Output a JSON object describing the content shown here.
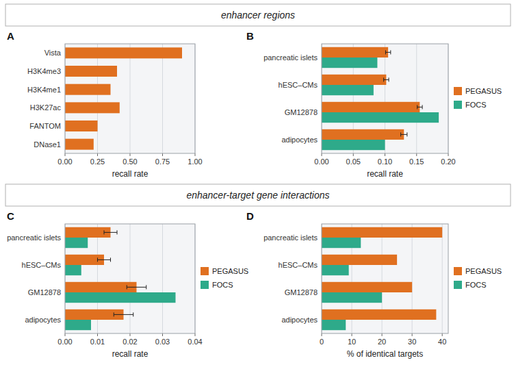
{
  "chart_data": [
    {
      "type": "bar",
      "title": "A",
      "annotations": [
        "enhancer regions"
      ],
      "orientation": "horizontal",
      "categories": [
        "Vista",
        "H3K4me3",
        "H3K4me1",
        "H3K27ac",
        "FANTOM",
        "DNase1"
      ],
      "values": [
        0.9,
        0.4,
        0.35,
        0.42,
        0.25,
        0.22
      ],
      "color": "#E07020",
      "xlabel": "recall rate",
      "xlim": [
        0,
        1.0
      ],
      "xticks": [
        {
          "value": 0.0,
          "label": "0.00"
        },
        {
          "value": 0.25,
          "label": "0.25"
        },
        {
          "value": 0.5,
          "label": "0.50"
        },
        {
          "value": 0.75,
          "label": "0.75"
        },
        {
          "value": 1.0,
          "label": "1.00"
        }
      ],
      "grid": true
    },
    {
      "type": "bar",
      "title": "B",
      "orientation": "horizontal",
      "categories": [
        "pancreatic islets",
        "hESC–CMs",
        "GM12878",
        "adipocytes"
      ],
      "series": [
        {
          "name": "PEGASUS",
          "color": "#E07020",
          "values": [
            0.105,
            0.102,
            0.155,
            0.13
          ],
          "errors": [
            0.004,
            0.004,
            0.004,
            0.005
          ]
        },
        {
          "name": "FOCS",
          "color": "#2EAA8A",
          "values": [
            0.088,
            0.082,
            0.185,
            0.1
          ]
        }
      ],
      "xlabel": "recall rate",
      "xlim": [
        0,
        0.2
      ],
      "xticks": [
        {
          "value": 0.0,
          "label": "0.00"
        },
        {
          "value": 0.05,
          "label": "0.05"
        },
        {
          "value": 0.1,
          "label": "0.10"
        },
        {
          "value": 0.15,
          "label": "0.15"
        },
        {
          "value": 0.2,
          "label": "0.20"
        }
      ],
      "grid": true,
      "legend": "right"
    },
    {
      "type": "bar",
      "title": "C",
      "annotations": [
        "enhancer-target gene interactions"
      ],
      "orientation": "horizontal",
      "categories": [
        "pancreatic islets",
        "hESC–CMs",
        "GM12878",
        "adipocytes"
      ],
      "series": [
        {
          "name": "PEGASUS",
          "color": "#E07020",
          "values": [
            0.014,
            0.012,
            0.022,
            0.018
          ],
          "errors": [
            0.002,
            0.002,
            0.003,
            0.003
          ]
        },
        {
          "name": "FOCS",
          "color": "#2EAA8A",
          "values": [
            0.007,
            0.005,
            0.034,
            0.008
          ]
        }
      ],
      "xlabel": "recall rate",
      "xlim": [
        0,
        0.04
      ],
      "xticks": [
        {
          "value": 0.0,
          "label": "0.00"
        },
        {
          "value": 0.01,
          "label": "0.01"
        },
        {
          "value": 0.02,
          "label": "0.02"
        },
        {
          "value": 0.03,
          "label": "0.03"
        },
        {
          "value": 0.04,
          "label": "0.04"
        }
      ],
      "grid": true,
      "legend": "right"
    },
    {
      "type": "bar",
      "title": "D",
      "orientation": "horizontal",
      "categories": [
        "pancreatic islets",
        "hESC–CMs",
        "GM12878",
        "adipocytes"
      ],
      "series": [
        {
          "name": "PEGASUS",
          "color": "#E07020",
          "values": [
            40,
            25,
            30,
            38
          ]
        },
        {
          "name": "FOCS",
          "color": "#2EAA8A",
          "values": [
            13,
            9,
            20,
            8
          ]
        }
      ],
      "xlabel": "% of identical targets",
      "xlim": [
        0,
        42
      ],
      "xticks": [
        0,
        10,
        20,
        30,
        40
      ],
      "grid": true,
      "legend": "right"
    }
  ]
}
